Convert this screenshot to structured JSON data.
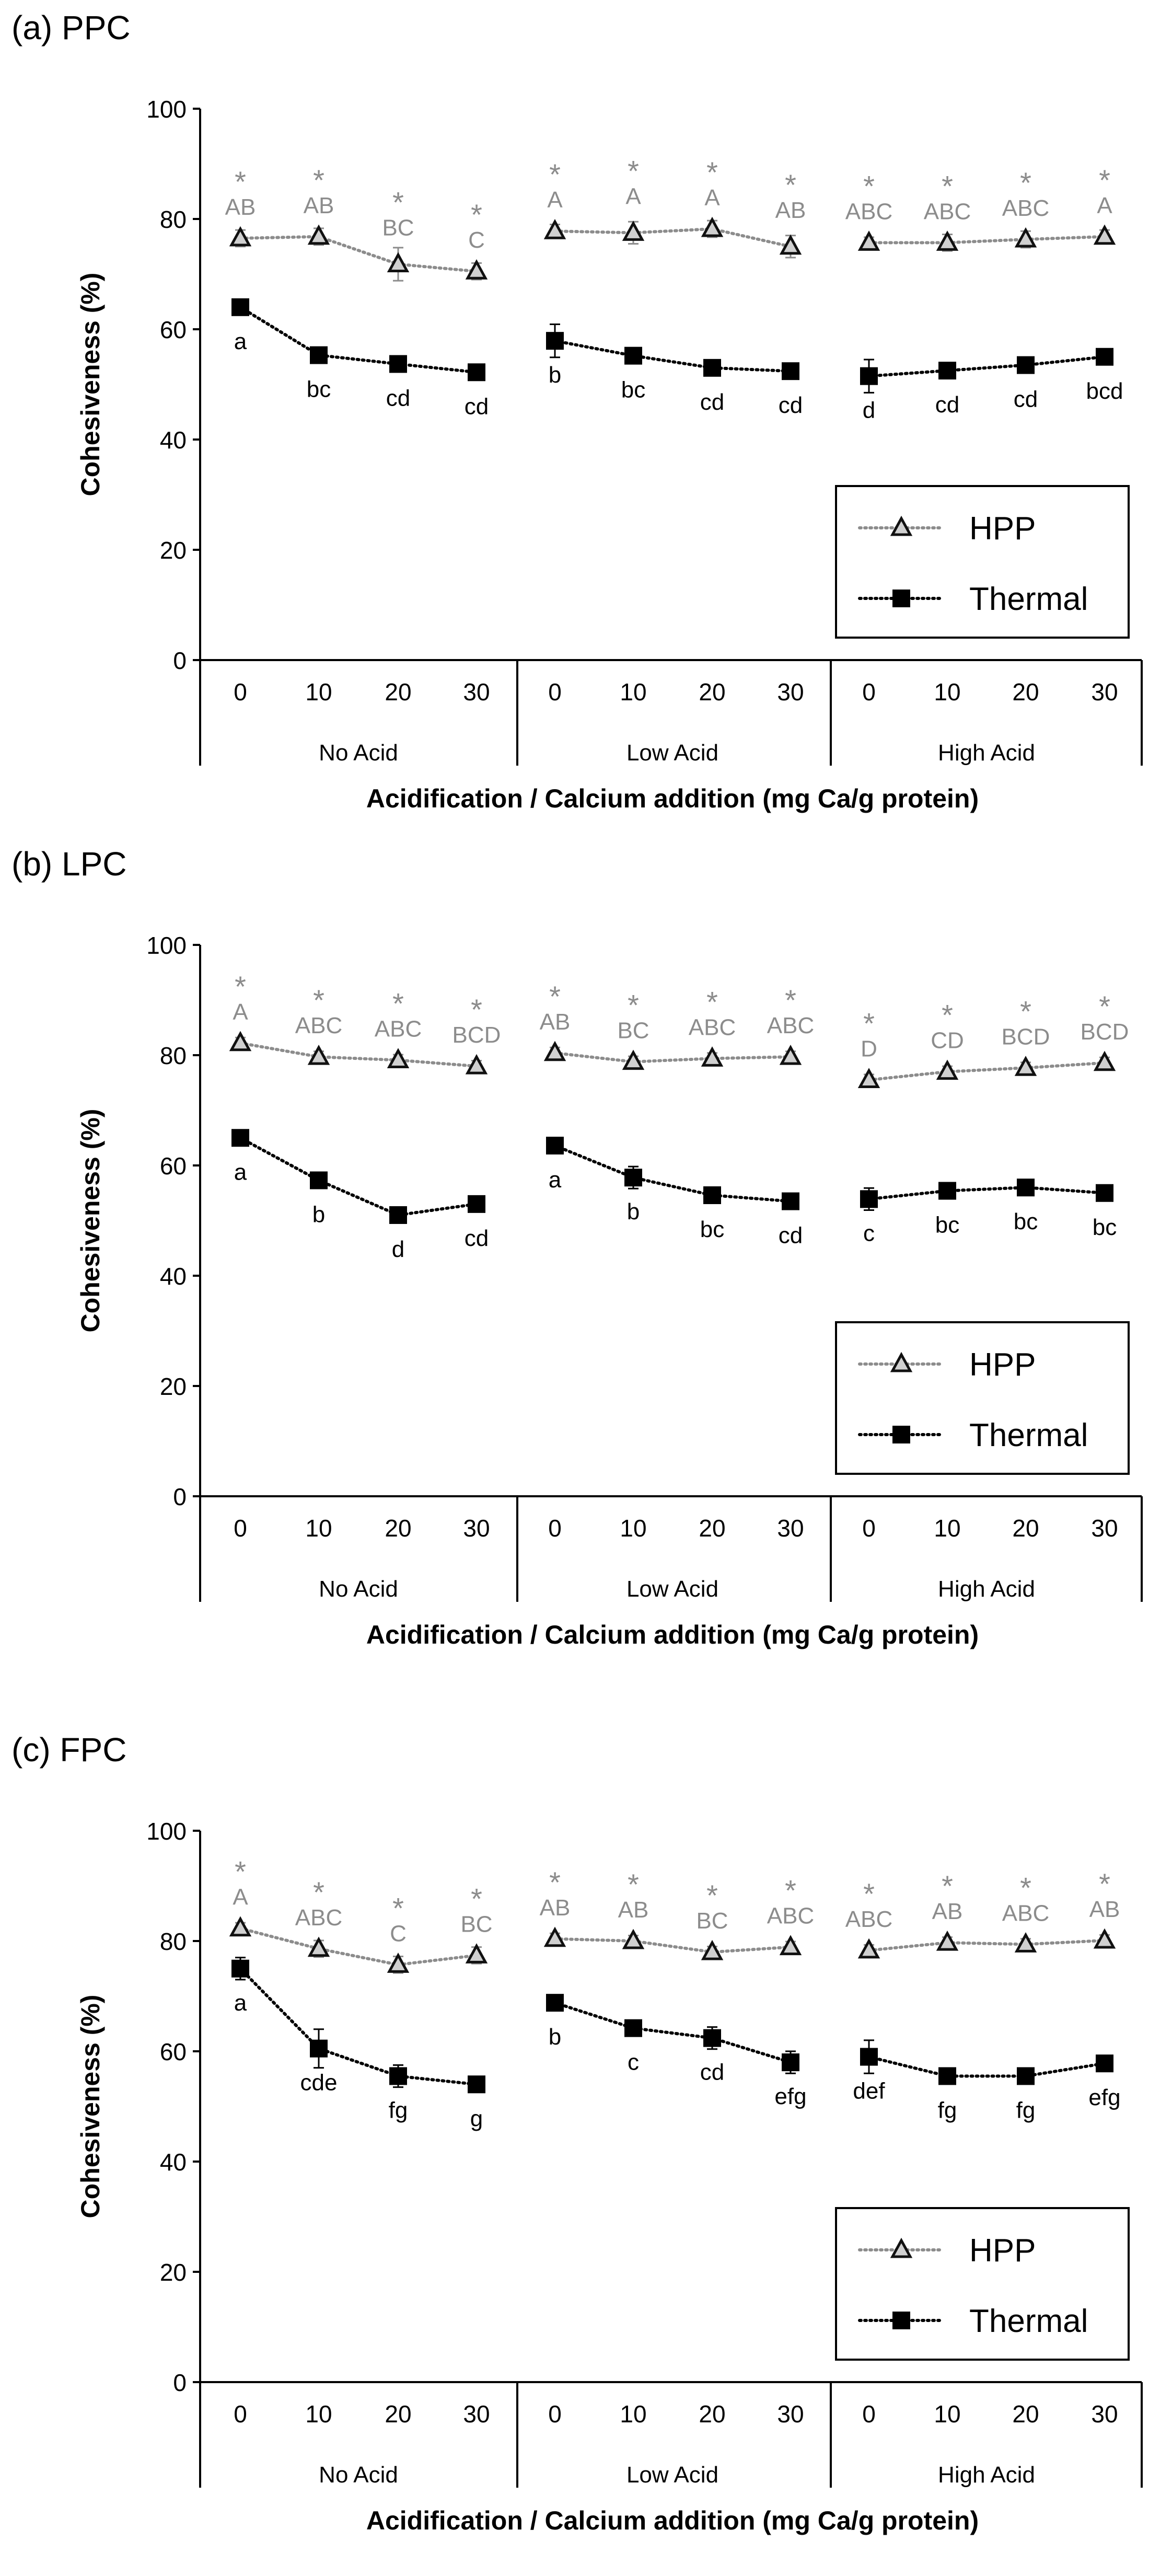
{
  "colors": {
    "hpp": "#8c8c8c",
    "thermal": "#000000",
    "axis": "#000000"
  },
  "chart_data": [
    {
      "panel_label": "(a) PPC",
      "type": "line",
      "ylabel": "Cohesiveness (%)",
      "xlabel": "Acidification / Calcium addition (mg Ca/g protein)",
      "ylim": [
        0,
        100
      ],
      "yticks": [
        "0",
        "20",
        "40",
        "60",
        "80",
        "100"
      ],
      "categories": [
        "0",
        "10",
        "20",
        "30",
        "0",
        "10",
        "20",
        "30",
        "0",
        "10",
        "20",
        "30"
      ],
      "groups": [
        "No Acid",
        "Low Acid",
        "High Acid"
      ],
      "legend_position": "lower-right",
      "series": [
        {
          "name": "HPP",
          "marker": "triangle",
          "values": [
            76.5,
            76.8,
            71.8,
            70.5,
            77.8,
            77.5,
            78.2,
            75.0,
            75.7,
            75.7,
            76.3,
            76.8
          ],
          "errors": [
            1.5,
            1.5,
            3.0,
            1.5,
            1.2,
            2.0,
            1.5,
            2.0,
            1.0,
            1.5,
            1.5,
            1.2
          ],
          "stars": [
            "*",
            "*",
            "*",
            "*",
            "*",
            "*",
            "*",
            "*",
            "*",
            "*",
            "*",
            "*"
          ],
          "letters": [
            "AB",
            "AB",
            "BC",
            "C",
            "A",
            "A",
            "A",
            "AB",
            "ABC",
            "ABC",
            "ABC",
            "A"
          ]
        },
        {
          "name": "Thermal",
          "marker": "square",
          "values": [
            64.0,
            55.3,
            53.7,
            52.2,
            57.9,
            55.2,
            53.0,
            52.4,
            51.5,
            52.5,
            53.5,
            55.0
          ],
          "errors": [
            1.0,
            1.0,
            1.0,
            1.0,
            3.0,
            1.0,
            1.0,
            1.0,
            3.0,
            1.0,
            1.0,
            1.0
          ],
          "letters": [
            "a",
            "bc",
            "cd",
            "cd",
            "b",
            "bc",
            "cd",
            "cd",
            "d",
            "cd",
            "cd",
            "bcd"
          ]
        }
      ]
    },
    {
      "panel_label": "(b) LPC",
      "type": "line",
      "ylabel": "Cohesiveness (%)",
      "xlabel": "Acidification / Calcium addition (mg Ca/g protein)",
      "ylim": [
        0,
        100
      ],
      "yticks": [
        "0",
        "20",
        "40",
        "60",
        "80",
        "100"
      ],
      "categories": [
        "0",
        "10",
        "20",
        "30",
        "0",
        "10",
        "20",
        "30",
        "0",
        "10",
        "20",
        "30"
      ],
      "groups": [
        "No Acid",
        "Low Acid",
        "High Acid"
      ],
      "legend_position": "lower-right",
      "series": [
        {
          "name": "HPP",
          "marker": "triangle",
          "values": [
            82.2,
            79.7,
            79.1,
            78.0,
            80.4,
            78.8,
            79.4,
            79.7,
            75.5,
            77.0,
            77.7,
            78.6
          ],
          "errors": [
            1.0,
            1.0,
            1.0,
            1.0,
            1.0,
            1.0,
            1.0,
            1.0,
            1.0,
            1.0,
            1.0,
            1.0
          ],
          "stars": [
            "*",
            "*",
            "*",
            "*",
            "*",
            "*",
            "*",
            "*",
            "*",
            "*",
            "*",
            "*"
          ],
          "letters": [
            "A",
            "ABC",
            "ABC",
            "BCD",
            "AB",
            "BC",
            "ABC",
            "ABC",
            "D",
            "CD",
            "BCD",
            "BCD"
          ]
        },
        {
          "name": "Thermal",
          "marker": "square",
          "values": [
            65.0,
            57.3,
            51.0,
            53.0,
            63.6,
            57.8,
            54.6,
            53.5,
            53.9,
            55.4,
            56.0,
            55.0
          ],
          "errors": [
            1.0,
            1.0,
            1.0,
            1.0,
            1.0,
            2.0,
            1.0,
            1.0,
            2.0,
            1.0,
            1.0,
            1.0
          ],
          "letters": [
            "a",
            "b",
            "d",
            "cd",
            "a",
            "b",
            "bc",
            "cd",
            "c",
            "bc",
            "bc",
            "bc"
          ]
        }
      ]
    },
    {
      "panel_label": "(c) FPC",
      "type": "line",
      "ylabel": "Cohesiveness (%)",
      "xlabel": "Acidification / Calcium addition (mg Ca/g protein)",
      "ylim": [
        0,
        100
      ],
      "yticks": [
        "0",
        "20",
        "40",
        "60",
        "80",
        "100"
      ],
      "categories": [
        "0",
        "10",
        "20",
        "30",
        "0",
        "10",
        "20",
        "30",
        "0",
        "10",
        "20",
        "30"
      ],
      "groups": [
        "No Acid",
        "Low Acid",
        "High Acid"
      ],
      "legend_position": "lower-right",
      "series": [
        {
          "name": "HPP",
          "marker": "triangle",
          "values": [
            82.3,
            78.6,
            75.7,
            77.4,
            80.4,
            80.0,
            78.0,
            78.9,
            78.3,
            79.7,
            79.4,
            80.1
          ],
          "errors": [
            1.0,
            1.5,
            1.5,
            1.5,
            1.0,
            1.0,
            1.0,
            1.0,
            1.0,
            1.0,
            1.0,
            1.0
          ],
          "stars": [
            "*",
            "*",
            "*",
            "*",
            "*",
            "*",
            "*",
            "*",
            "*",
            "*",
            "*",
            "*"
          ],
          "letters": [
            "A",
            "ABC",
            "C",
            "BC",
            "AB",
            "AB",
            "BC",
            "ABC",
            "ABC",
            "AB",
            "ABC",
            "AB"
          ]
        },
        {
          "name": "Thermal",
          "marker": "square",
          "values": [
            75.0,
            60.5,
            55.5,
            54.0,
            68.8,
            64.2,
            62.4,
            58.0,
            59.0,
            55.5,
            55.5,
            57.8
          ],
          "errors": [
            2.0,
            3.5,
            2.0,
            1.0,
            1.0,
            1.0,
            2.0,
            2.0,
            3.0,
            1.0,
            1.0,
            1.0
          ],
          "letters": [
            "a",
            "cde",
            "fg",
            "g",
            "b",
            "c",
            "cd",
            "efg",
            "def",
            "fg",
            "fg",
            "efg"
          ]
        }
      ]
    }
  ]
}
